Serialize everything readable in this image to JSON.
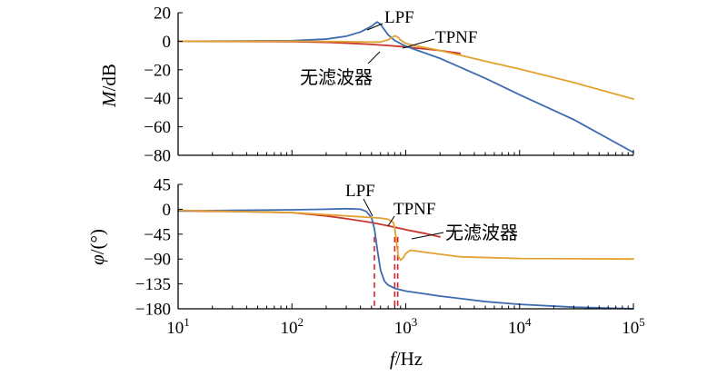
{
  "chart_data": [
    {
      "type": "line",
      "panel": "magnitude",
      "xscale": "log",
      "xlim": [
        10,
        100000
      ],
      "ylim": [
        -80,
        20
      ],
      "yticks": [
        "20",
        "0",
        "−20",
        "−40",
        "−60",
        "−80"
      ],
      "ylabel": {
        "var": "M",
        "unit": "/dB"
      },
      "xlabel": "",
      "grid": false,
      "series": [
        {
          "name": "LPF",
          "color": "#3C6BB0",
          "x": [
            10,
            100,
            200,
            300,
            400,
            500,
            560,
            600,
            650,
            700,
            800,
            1000,
            2000,
            5000,
            10000,
            30000,
            100000
          ],
          "y": [
            0,
            0.4,
            1.5,
            3.5,
            6.5,
            10.5,
            13.5,
            12,
            8,
            4.5,
            0.5,
            -3.5,
            -12,
            -26,
            -37.5,
            -55,
            -78
          ]
        },
        {
          "name": "TPNF",
          "color": "#E2A232",
          "x": [
            10,
            100,
            300,
            500,
            600,
            700,
            750,
            800,
            850,
            900,
            1000,
            1200,
            2000,
            5000,
            10000,
            30000,
            100000
          ],
          "y": [
            0,
            0,
            -0.3,
            -0.6,
            -0.5,
            1,
            2.5,
            3.8,
            3,
            0.8,
            -1.5,
            -3,
            -6.5,
            -14,
            -19.5,
            -29,
            -40.5
          ]
        },
        {
          "name": "无滤波器",
          "color": "#C8352A",
          "x": [
            10,
            100,
            200,
            300,
            500,
            700,
            1000,
            1500,
            2000,
            3000
          ],
          "y": [
            0,
            -0.3,
            -0.8,
            -1.3,
            -2.2,
            -3,
            -4,
            -5.5,
            -6.5,
            -8.5
          ]
        }
      ],
      "annotations": [
        "LPF",
        "TPNF",
        "无滤波器"
      ]
    },
    {
      "type": "line",
      "panel": "phase",
      "xscale": "log",
      "xlim": [
        10,
        100000
      ],
      "ylim": [
        -180,
        45
      ],
      "yticks": [
        "45",
        "0",
        "−45",
        "−90",
        "−135",
        "−180"
      ],
      "xticks": [
        {
          "base": "10",
          "exp": "1"
        },
        {
          "base": "10",
          "exp": "2"
        },
        {
          "base": "10",
          "exp": "3"
        },
        {
          "base": "10",
          "exp": "4"
        },
        {
          "base": "10",
          "exp": "5"
        }
      ],
      "ylabel": {
        "var": "φ",
        "unit": "/(°)"
      },
      "xlabel": {
        "var": "f",
        "unit": "/Hz"
      },
      "grid": false,
      "series": [
        {
          "name": "LPF",
          "color": "#3C6BB0",
          "x": [
            10,
            30,
            100,
            200,
            300,
            400,
            450,
            500,
            530,
            560,
            600,
            650,
            700,
            800,
            1000,
            2000,
            5000,
            10000,
            30000,
            100000
          ],
          "y": [
            -3,
            -2,
            -1,
            0,
            1,
            0,
            -4,
            -15,
            -35,
            -70,
            -110,
            -130,
            -137,
            -143,
            -148,
            -157,
            -167,
            -172,
            -177,
            -180
          ]
        },
        {
          "name": "TPNF",
          "color": "#E2A232",
          "x": [
            10,
            100,
            300,
            500,
            600,
            700,
            780,
            800,
            830,
            860,
            900,
            950,
            1000,
            1100,
            1500,
            3000,
            10000,
            100000
          ],
          "y": [
            -2,
            -6,
            -12,
            -15,
            -16,
            -18,
            -24,
            -35,
            -60,
            -85,
            -92,
            -88,
            -80,
            -74,
            -78,
            -86,
            -89,
            -90
          ]
        },
        {
          "name": "无滤波器",
          "color": "#C8352A",
          "x": [
            10,
            30,
            100,
            200,
            300,
            500,
            700,
            1000,
            1500,
            2000
          ],
          "y": [
            -3,
            -4,
            -6,
            -12,
            -17,
            -24,
            -30,
            -37,
            -44,
            -50
          ]
        }
      ],
      "markers": {
        "color": "#E0212B",
        "style": "dashed",
        "x": [
          530,
          800,
          850
        ],
        "y_from": -50
      },
      "annotations": [
        "LPF",
        "TPNF",
        "无滤波器"
      ]
    }
  ]
}
